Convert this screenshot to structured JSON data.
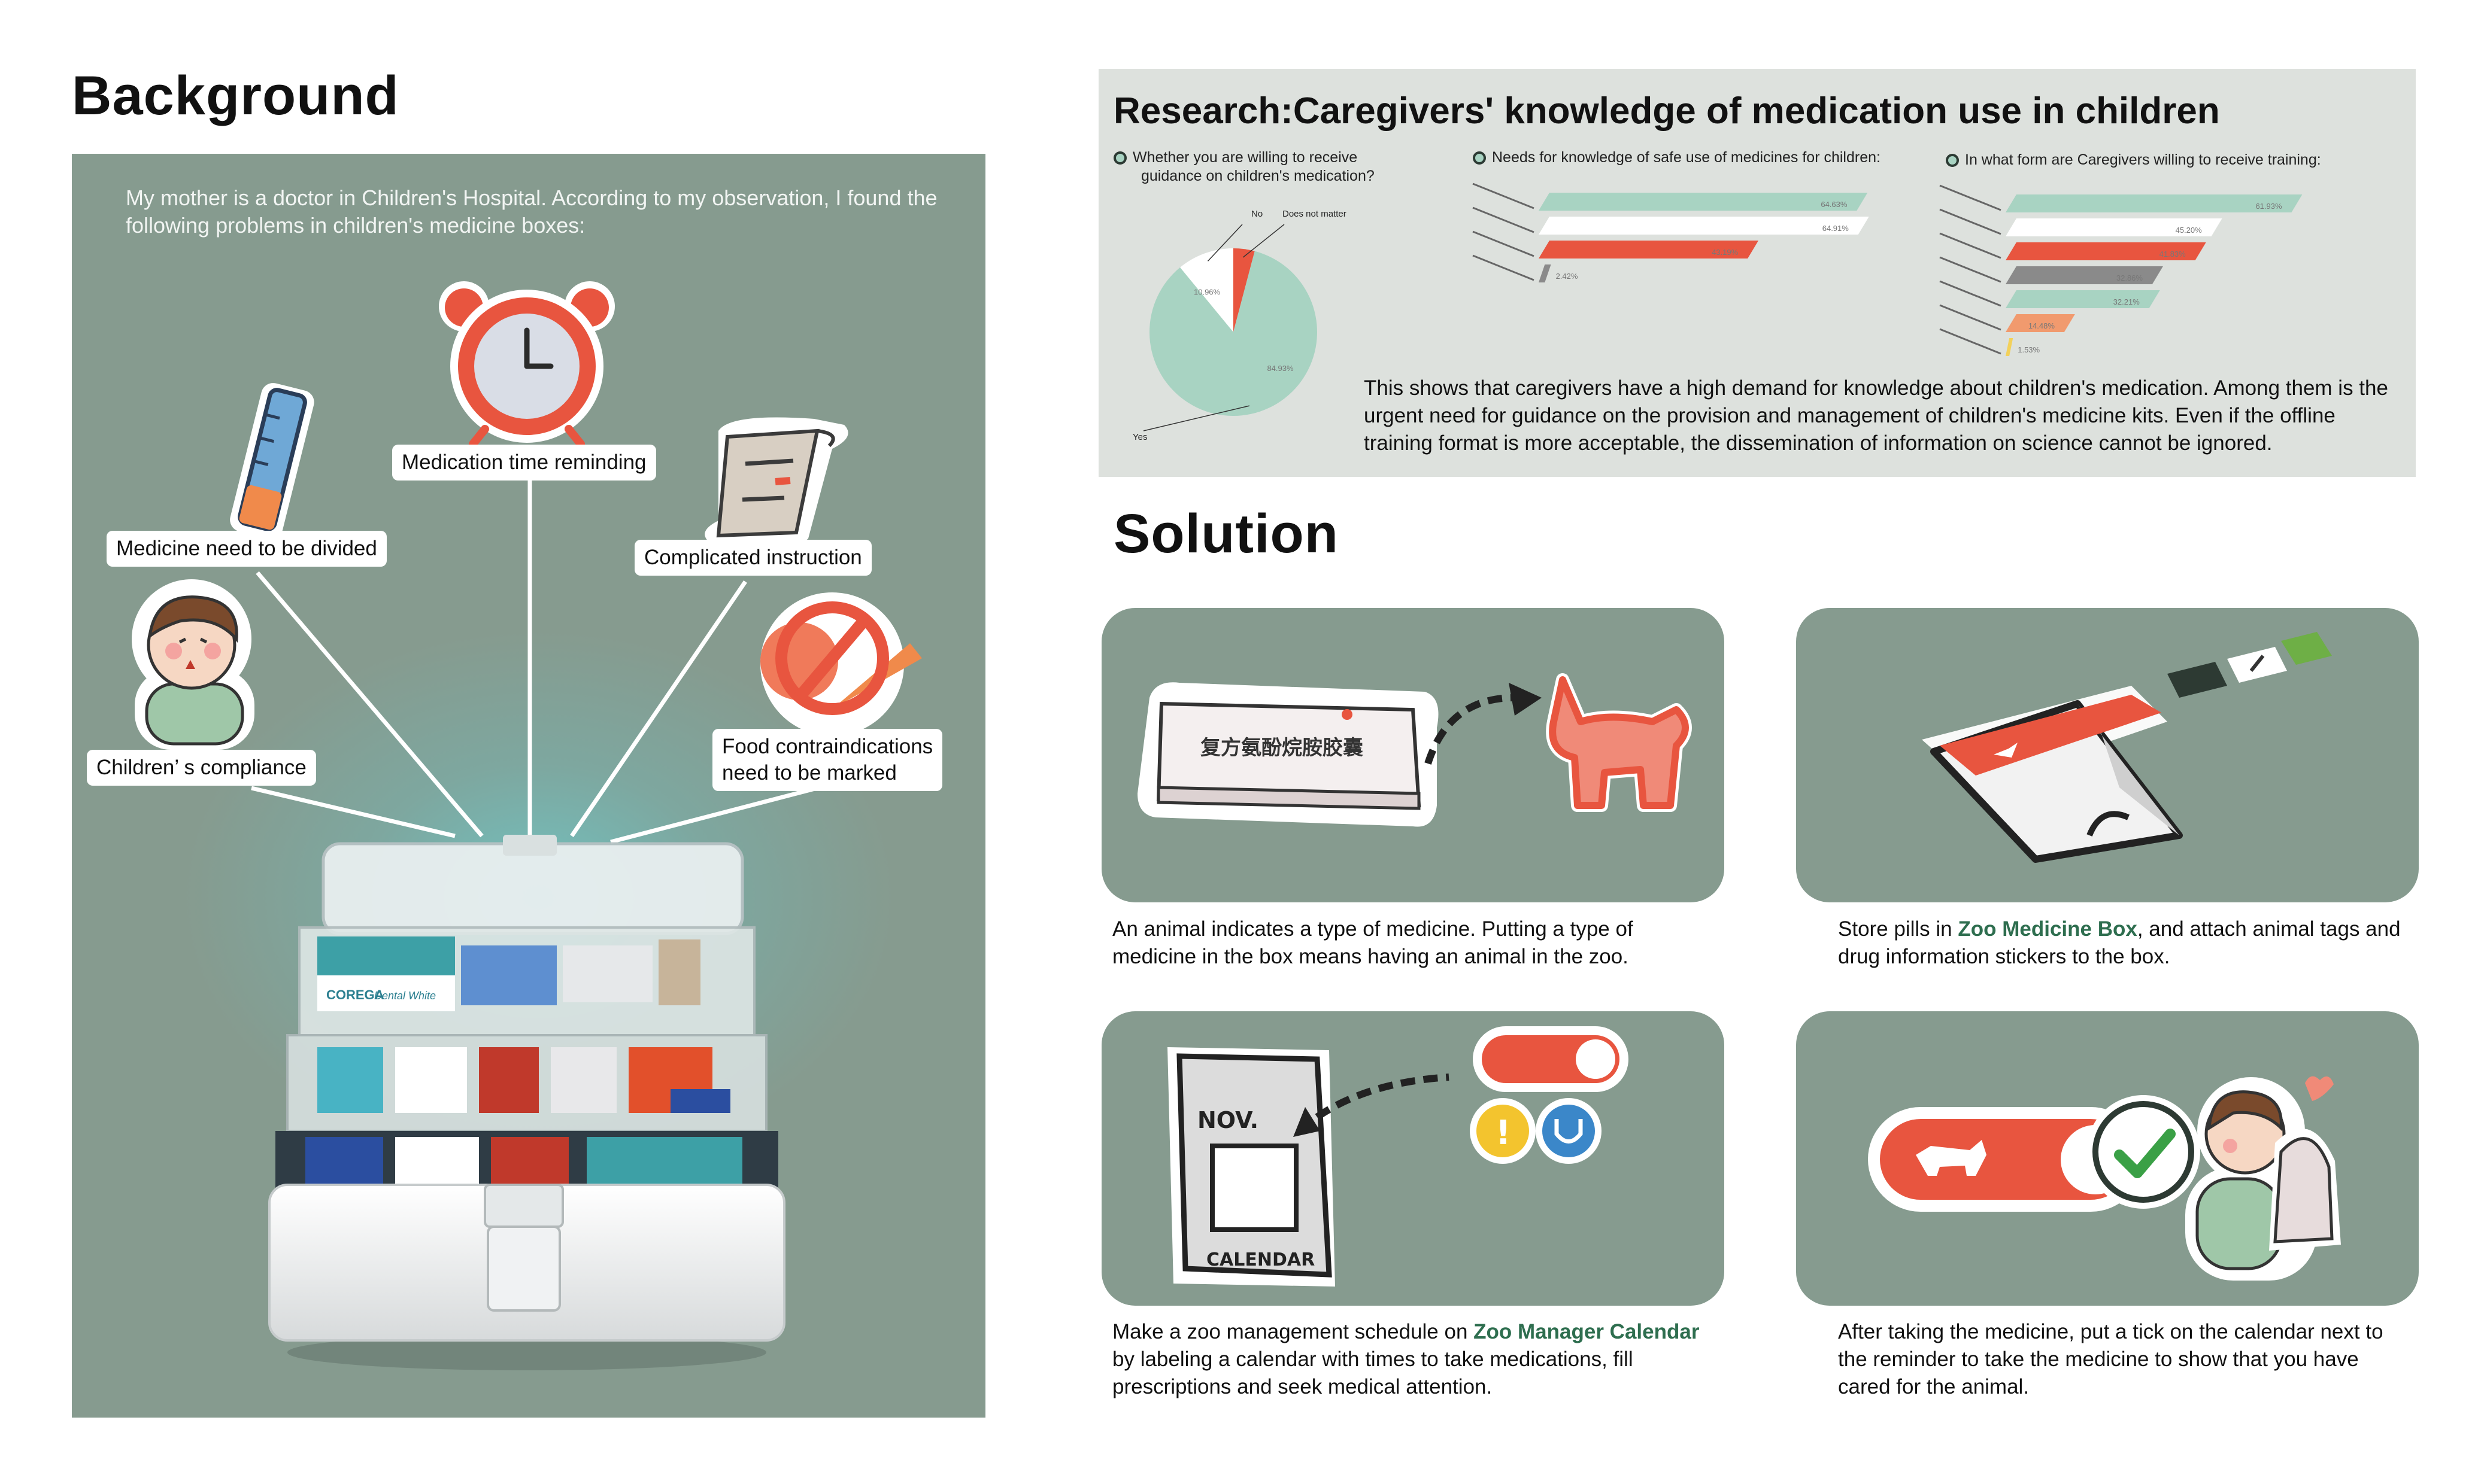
{
  "background": {
    "title": "Background",
    "intro": "My mother is a doctor in Children's Hospital. According to my observation, I found the following problems in children's medicine boxes:",
    "callouts": {
      "time": "Medication time reminding",
      "divided": "Medicine need to be divided",
      "instruction": "Complicated instruction",
      "compliance": "Children’ s compliance",
      "food_1": "Food contraindications",
      "food_2": "need to be marked"
    },
    "box_labels": {
      "brand": "COREGA",
      "sub": "Dental White"
    }
  },
  "research": {
    "title": "Research:Caregivers' knowledge of medication use in children",
    "q1_line1": "Whether you are willing to receive",
    "q1_line2": "guidance on children's medication?",
    "q2": "Needs for knowledge of safe use of medicines for children:",
    "q3": "In what form are Caregivers willing to receive training:",
    "body": "This shows that caregivers have a high demand for knowledge about children's medication. Among them is the urgent need for guidance on the provision and management of children's medicine kits. Even if the offline training format is more acceptable, the dissemination of information on science cannot be ignored."
  },
  "chart_data": [
    {
      "type": "pie",
      "title": "Whether you are willing to receive guidance on children's medication?",
      "labels": [
        "Yes",
        "No",
        "Does not matter"
      ],
      "values": [
        84.93,
        10.96,
        4.11
      ],
      "value_labels": [
        "84.93%",
        "10.96%",
        ""
      ],
      "colors": [
        "#a8d3c2",
        "#ffffff",
        "#e8553f"
      ]
    },
    {
      "type": "bar",
      "title": "Needs for knowledge of safe use of medicines for children:",
      "values": [
        64.63,
        64.91,
        43.19,
        2.42
      ],
      "value_labels": [
        "64.63%",
        "64.91%",
        "43.19%",
        "2.42%"
      ],
      "colors": [
        "#a8d3c2",
        "#ffffff",
        "#e8553f",
        "#8a8a8a"
      ],
      "xlim": [
        0,
        100
      ]
    },
    {
      "type": "bar",
      "title": "In what form are Caregivers willing to receive training:",
      "values": [
        61.93,
        45.2,
        41.83,
        32.86,
        32.21,
        14.48,
        1.53
      ],
      "value_labels": [
        "61.93%",
        "45.20%",
        "41.83%",
        "32.86%",
        "32.21%",
        "14.48%",
        "1.53%"
      ],
      "colors": [
        "#a8d3c2",
        "#ffffff",
        "#e8553f",
        "#8a8a8a",
        "#a8d3c2",
        "#f19a6e",
        "#f3d15a"
      ],
      "xlim": [
        0,
        100
      ]
    }
  ],
  "solution": {
    "title": "Solution",
    "card1": {
      "box_text": "复方氨酚烷胺胶囊",
      "caption": "An animal indicates a type of medicine. Putting a type of medicine in the box means having an animal in the zoo."
    },
    "card2": {
      "caption_pre": "Store pills in ",
      "caption_hl": "Zoo Medicine Box",
      "caption_post": ", and attach animal tags and drug information stickers to the box."
    },
    "card3": {
      "cal_month": "NOV.",
      "cal_label": "CALENDAR",
      "caption_pre": "Make a zoo management schedule on ",
      "caption_hl": "Zoo Manager Calendar",
      "caption_post": " by labeling a calendar with times to take medications, fill prescriptions and seek medical attention."
    },
    "card4": {
      "caption": "After taking the medicine, put a tick on the calendar next to the reminder to take the medicine to show that you have cared for the animal."
    }
  },
  "colors": {
    "panel": "#869b8f",
    "research_bg": "#dde1dd",
    "accent_red": "#e8553f",
    "mint": "#a8d3c2",
    "highlight": "#2e6e4f"
  }
}
